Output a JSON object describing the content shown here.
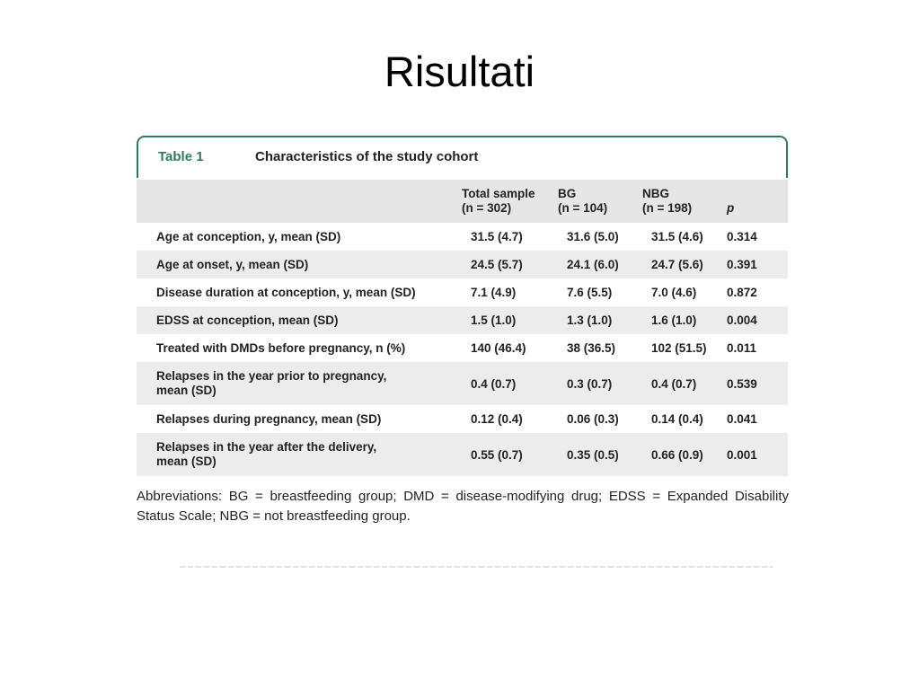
{
  "slide": {
    "title": "Risultati"
  },
  "table": {
    "label": "Table 1",
    "caption": "Characteristics of the study cohort",
    "columns": [
      {
        "line1": "Total sample",
        "line2": "(n = 302)"
      },
      {
        "line1": "BG",
        "line2": "(n = 104)"
      },
      {
        "line1": "NBG",
        "line2": "(n = 198)"
      },
      {
        "line1": "",
        "line2": "p"
      }
    ],
    "rows": [
      {
        "label": "Age at conception, y, mean (SD)",
        "values": [
          "31.5 (4.7)",
          "31.6 (5.0)",
          "31.5 (4.6)",
          "0.314"
        ]
      },
      {
        "label": "Age at onset, y, mean (SD)",
        "values": [
          "24.5 (5.7)",
          "24.1 (6.0)",
          "24.7 (5.6)",
          "0.391"
        ]
      },
      {
        "label": "Disease duration at conception, y, mean (SD)",
        "values": [
          "7.1 (4.9)",
          "7.6 (5.5)",
          "7.0 (4.6)",
          "0.872"
        ]
      },
      {
        "label": "EDSS at conception, mean (SD)",
        "values": [
          "1.5 (1.0)",
          "1.3 (1.0)",
          "1.6 (1.0)",
          "0.004"
        ]
      },
      {
        "label": "Treated with DMDs before pregnancy, n (%)",
        "values": [
          "140 (46.4)",
          "38 (36.5)",
          "102 (51.5)",
          "0.011"
        ]
      },
      {
        "label": "Relapses in the year prior to pregnancy,",
        "label2": "mean (SD)",
        "values": [
          "0.4 (0.7)",
          "0.3 (0.7)",
          "0.4 (0.7)",
          "0.539"
        ]
      },
      {
        "label": "Relapses during pregnancy, mean (SD)",
        "values": [
          "0.12 (0.4)",
          "0.06 (0.3)",
          "0.14 (0.4)",
          "0.041"
        ]
      },
      {
        "label": "Relapses in the year after the delivery,",
        "label2": "mean (SD)",
        "values": [
          "0.55 (0.7)",
          "0.35 (0.5)",
          "0.66 (0.9)",
          "0.001"
        ]
      }
    ]
  },
  "footnote": "Abbreviations: BG = breastfeeding group; DMD = disease-modifying drug; EDSS = Expanded Disability Status Scale; NBG = not breastfeeding group."
}
